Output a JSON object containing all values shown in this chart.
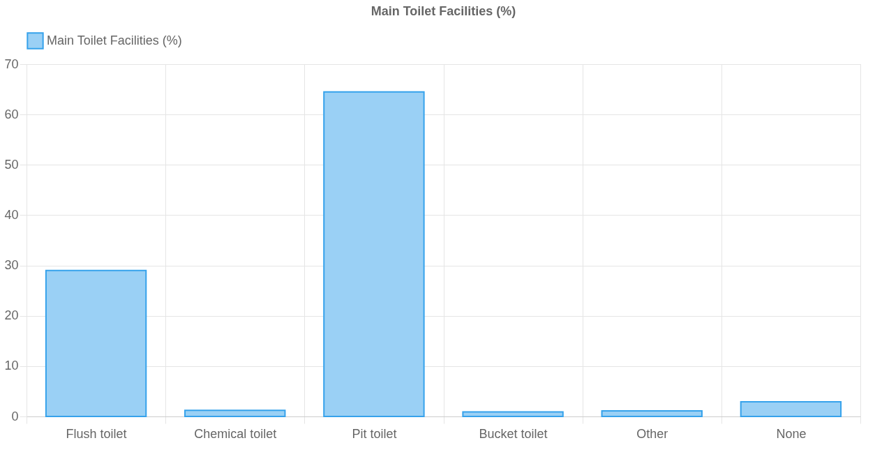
{
  "chart_data": {
    "type": "bar",
    "title": "Main Toilet Facilities (%)",
    "categories": [
      "Flush toilet",
      "Chemical toilet",
      "Pit toilet",
      "Bucket toilet",
      "Other",
      "None"
    ],
    "series": [
      {
        "name": "Main Toilet Facilities (%)",
        "color": "#9ad0f5",
        "values": [
          29.0,
          1.2,
          64.5,
          0.9,
          1.1,
          2.9
        ]
      }
    ],
    "ylim": [
      0,
      70
    ],
    "yticks": [
      0,
      10,
      20,
      30,
      40,
      50,
      60,
      70
    ],
    "grid": true,
    "legend": "top"
  }
}
